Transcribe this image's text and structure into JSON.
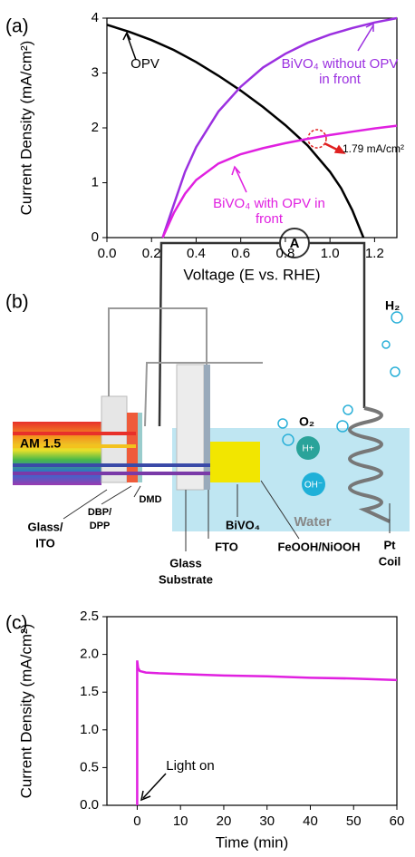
{
  "panel_labels": [
    "(a)",
    "(b)",
    "(c)"
  ],
  "chart_data": [
    {
      "type": "line",
      "x_label": "Voltage (E vs. RHE)",
      "y_label": "Current Density (mA/cm²)",
      "xlim": [
        0,
        1.3
      ],
      "ylim": [
        0,
        4
      ],
      "xticks": [
        {
          "value": 0,
          "label": "0.0"
        },
        0.2,
        0.4,
        0.6,
        0.8,
        {
          "value": 1,
          "label": "1.0"
        },
        1.2
      ],
      "yticks": [
        0,
        1,
        2,
        3,
        4
      ],
      "series": [
        {
          "name": "OPV",
          "color": "#000000",
          "x": [
            0,
            0.1,
            0.2,
            0.3,
            0.4,
            0.5,
            0.6,
            0.7,
            0.8,
            0.9,
            1.0,
            1.05,
            1.1,
            1.15
          ],
          "values": [
            3.88,
            3.75,
            3.6,
            3.42,
            3.2,
            2.95,
            2.68,
            2.38,
            2.05,
            1.68,
            1.2,
            0.9,
            0.5,
            0
          ]
        },
        {
          "name": "BiVO₄ without OPV in front",
          "color": "#9b30e0",
          "x": [
            0.25,
            0.3,
            0.35,
            0.4,
            0.5,
            0.6,
            0.7,
            0.8,
            0.9,
            1.0,
            1.1,
            1.2,
            1.3
          ],
          "values": [
            0,
            0.6,
            1.2,
            1.65,
            2.3,
            2.75,
            3.1,
            3.35,
            3.55,
            3.7,
            3.82,
            3.92,
            4.0
          ]
        },
        {
          "name": "BiVO₄ with OPV in front",
          "color": "#e020e0",
          "x": [
            0.25,
            0.3,
            0.35,
            0.4,
            0.5,
            0.6,
            0.7,
            0.8,
            0.9,
            1.0,
            1.1,
            1.2,
            1.3
          ],
          "values": [
            0,
            0.45,
            0.8,
            1.05,
            1.35,
            1.52,
            1.63,
            1.72,
            1.8,
            1.87,
            1.93,
            1.99,
            2.04
          ]
        }
      ],
      "annotations": [
        "1.79 mA/cm²"
      ]
    },
    {
      "type": "line",
      "x_label": "Time (min)",
      "y_label": "Current Density (mA/cm²)",
      "xlim": [
        -7,
        60
      ],
      "ylim": [
        0,
        2.5
      ],
      "xticks": [
        0,
        10,
        20,
        30,
        40,
        50,
        60
      ],
      "yticks": [
        {
          "value": 0,
          "label": "0.0"
        },
        0.5,
        {
          "value": 1,
          "label": "1.0"
        },
        1.5,
        {
          "value": 2,
          "label": "2.0"
        },
        2.5
      ],
      "series": [
        {
          "color": "#e020e0",
          "x": [
            0,
            0,
            0.2,
            0.6,
            2,
            5,
            10,
            20,
            30,
            40,
            50,
            60
          ],
          "values": [
            0,
            1.92,
            1.82,
            1.78,
            1.76,
            1.75,
            1.74,
            1.72,
            1.71,
            1.69,
            1.68,
            1.66
          ]
        }
      ],
      "annotations": [
        "Light on"
      ]
    }
  ],
  "diagram": {
    "light": "AM 1.5",
    "ammeter": "A",
    "h2": "H₂",
    "o2": "O₂",
    "h_plus": "H+",
    "oh_minus": "OH⁻",
    "water": "Water",
    "labels": [
      {
        "lines": [
          "Glass/",
          "ITO"
        ]
      },
      {
        "lines": [
          "DBP/",
          "DPP"
        ]
      },
      {
        "lines": [
          "DMD"
        ]
      },
      {
        "lines": [
          "Glass",
          "Substrate"
        ]
      },
      {
        "lines": [
          "FTO"
        ]
      },
      {
        "lines": [
          "BiVO₄"
        ]
      },
      {
        "lines": [
          "FeOOH/NiOOH"
        ]
      },
      {
        "lines": [
          "Pt",
          "Coil"
        ]
      }
    ]
  }
}
